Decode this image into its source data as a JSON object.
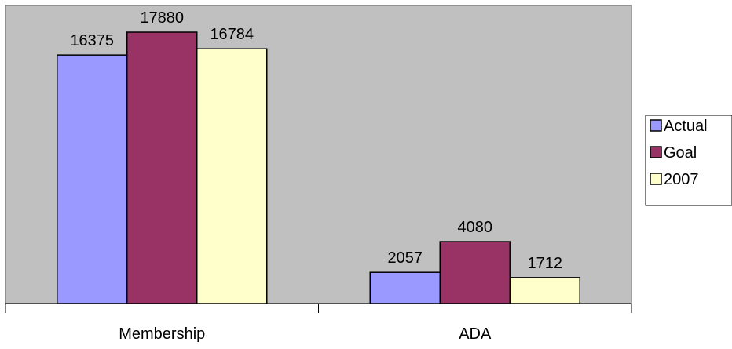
{
  "chart_data": {
    "type": "bar",
    "categories": [
      "Membership",
      "ADA"
    ],
    "series": [
      {
        "name": "Actual",
        "values": [
          16375,
          2057
        ],
        "color": "#9999ff"
      },
      {
        "name": "Goal",
        "values": [
          17880,
          4080
        ],
        "color": "#993366"
      },
      {
        "name": "2007",
        "values": [
          16784,
          1712
        ],
        "color": "#ffffcc"
      }
    ],
    "data_labels": true,
    "ylim": [
      0,
      20000
    ],
    "grid": false,
    "plot_background": "#c0c0c0",
    "legend_position": "right",
    "title": "",
    "xlabel": "",
    "ylabel": ""
  }
}
